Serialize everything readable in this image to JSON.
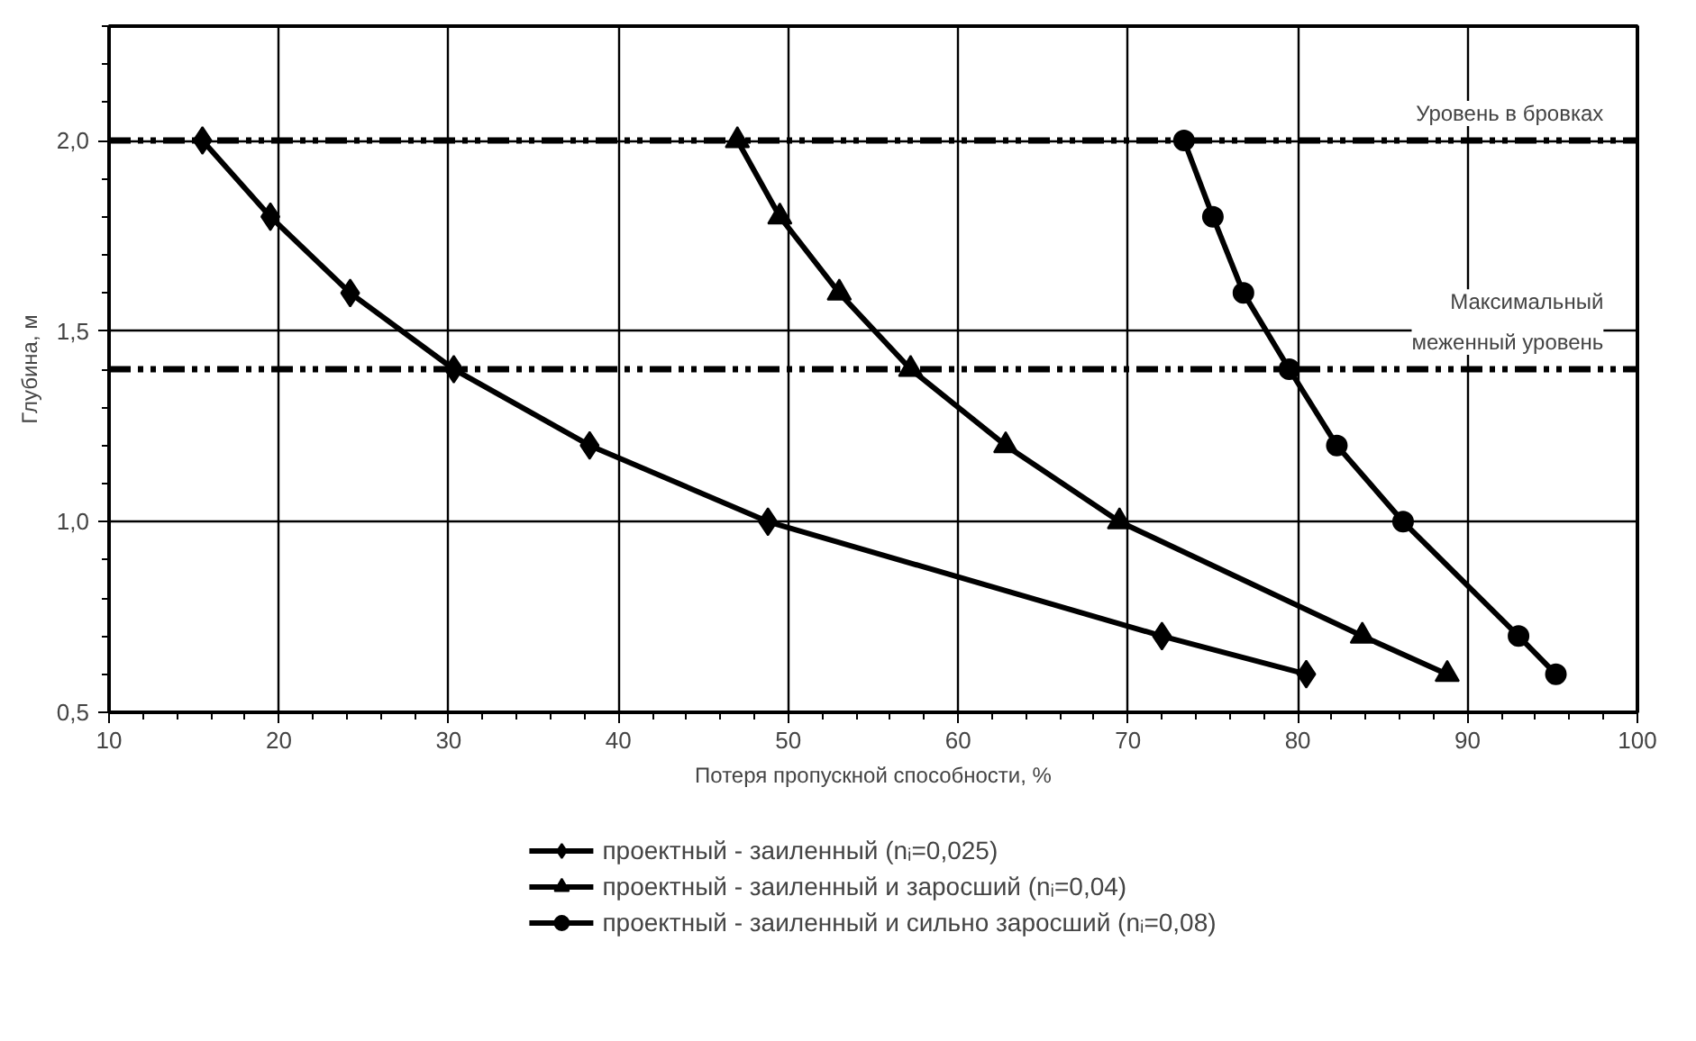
{
  "chart_data": {
    "type": "line",
    "xlabel": "Потеря пропускной способности, %",
    "ylabel": "Глубина, м",
    "xlim": [
      10,
      100
    ],
    "xticks": [
      10,
      20,
      30,
      40,
      50,
      60,
      70,
      80,
      90,
      100
    ],
    "ylim": [
      0.5,
      2.3
    ],
    "yticks": [
      {
        "value": 0.5,
        "label": "0,5"
      },
      {
        "value": 1.0,
        "label": "1,0"
      },
      {
        "value": 1.5,
        "label": "1,5"
      },
      {
        "value": 2.0,
        "label": "2,0"
      }
    ],
    "grid": true,
    "legend": "bottom",
    "line_style": "solid",
    "series": [
      {
        "name": "проектный - заиленный (nᵢ=0,025)",
        "color": "#000000",
        "marker": "diamond",
        "x": [
          15.5,
          19.5,
          24.2,
          30.3,
          38.3,
          48.8,
          72,
          80.5
        ],
        "values": [
          2.0,
          1.8,
          1.6,
          1.4,
          1.2,
          1.0,
          0.7,
          0.6
        ]
      },
      {
        "name": "проектный - заиленный и заросший (nᵢ=0,04)",
        "color": "#000000",
        "marker": "triangle",
        "x": [
          47,
          49.5,
          53,
          57.2,
          62.8,
          69.5,
          83.8,
          88.8
        ],
        "values": [
          2.0,
          1.8,
          1.6,
          1.4,
          1.2,
          1.0,
          0.7,
          0.6
        ]
      },
      {
        "name": "проектный - заиленный и сильно заросший (nᵢ=0,08)",
        "color": "#000000",
        "marker": "circle",
        "x": [
          73.3,
          75,
          76.8,
          79.5,
          82.3,
          86.2,
          93,
          95.2
        ],
        "values": [
          2.0,
          1.8,
          1.6,
          1.4,
          1.2,
          1.0,
          0.7,
          0.6
        ]
      }
    ],
    "ref_lines": [
      {
        "axis": "y",
        "value": 2.0,
        "label": "Уровень в бровках",
        "color": "#000000",
        "line_style": "dashed"
      },
      {
        "axis": "y",
        "value": 1.4,
        "label": "Максимальный\nмеженный уровень",
        "color": "#000000",
        "line_style": "dashed"
      }
    ]
  }
}
